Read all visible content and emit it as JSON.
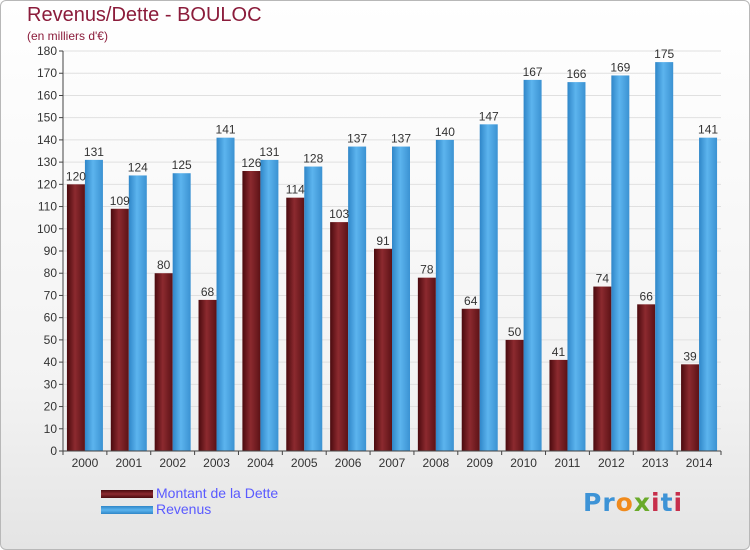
{
  "title": "Revenus/Dette - BOULOC",
  "subtitle": "(en milliers d'€)",
  "logo": {
    "text": "Proxiti",
    "letter_colors": [
      "#3d93d6",
      "#f08a1c",
      "#6aaa2a",
      "#c72f4b",
      "#3d93d6"
    ]
  },
  "colors": {
    "debt": "#7a1f24",
    "revenue": "#4da6e6",
    "axis": "#444444",
    "grid": "#e0e0e0",
    "label": "#333333"
  },
  "chart_data": {
    "type": "bar",
    "title": "Revenus/Dette - BOULOC",
    "subtitle": "(en milliers d'€)",
    "xlabel": "",
    "ylabel": "",
    "ylim": [
      0,
      180
    ],
    "yticks": [
      0,
      10,
      20,
      30,
      40,
      50,
      60,
      70,
      80,
      90,
      100,
      110,
      120,
      130,
      140,
      150,
      160,
      170,
      180
    ],
    "grid": true,
    "legend_position": "bottom-left",
    "categories": [
      "2000",
      "2001",
      "2002",
      "2003",
      "2004",
      "2005",
      "2006",
      "2007",
      "2008",
      "2009",
      "2010",
      "2011",
      "2012",
      "2013",
      "2014"
    ],
    "series": [
      {
        "name": "Montant de la Dette",
        "color": "#7a1f24",
        "values": [
          120,
          109,
          80,
          68,
          126,
          114,
          103,
          91,
          78,
          64,
          50,
          41,
          74,
          66,
          39
        ]
      },
      {
        "name": "Revenus",
        "color": "#4da6e6",
        "values": [
          131,
          124,
          125,
          141,
          131,
          128,
          137,
          137,
          140,
          147,
          167,
          166,
          169,
          175,
          141
        ]
      }
    ]
  }
}
